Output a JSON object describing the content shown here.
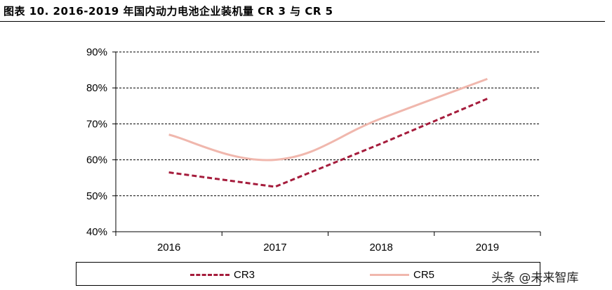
{
  "title": "图表 10. 2016-2019 年国内动力电池企业装机量 CR 3 与 CR 5",
  "watermark": "头条 @未来智库",
  "chart_data": {
    "type": "line",
    "categories": [
      "2016",
      "2017",
      "2018",
      "2019"
    ],
    "series": [
      {
        "name": "CR3",
        "values": [
          0.565,
          0.525,
          0.645,
          0.77
        ],
        "color": "#a51c3c",
        "style": "dashed",
        "smooth": false
      },
      {
        "name": "CR5",
        "values": [
          0.67,
          0.6,
          0.715,
          0.825
        ],
        "color": "#f0b7ad",
        "style": "solid",
        "smooth": true
      }
    ],
    "ylim": [
      0.4,
      0.9
    ],
    "yticks": [
      0.4,
      0.5,
      0.6,
      0.7,
      0.8,
      0.9
    ],
    "ytick_labels": [
      "40%",
      "50%",
      "60%",
      "70%",
      "80%",
      "90%"
    ],
    "xlabel": "",
    "ylabel": "",
    "grid": "horizontal-dashed",
    "legend_position": "bottom"
  }
}
